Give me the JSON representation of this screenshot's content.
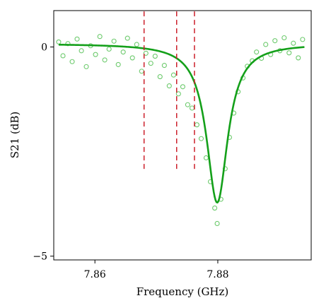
{
  "chart_data": {
    "type": "scatter",
    "xlabel": "Frequency (GHz)",
    "ylabel": "S21 (dB)",
    "xlim": [
      7.8533,
      7.8952
    ],
    "ylim": [
      -5.0,
      0.0
    ],
    "x_ticks": [
      {
        "value": 7.86,
        "label": "7.86"
      },
      {
        "value": 7.88,
        "label": "7.88"
      }
    ],
    "y_ticks": [
      {
        "value": 0,
        "label": "0"
      },
      {
        "value": -5,
        "label": "−5"
      }
    ],
    "grid": false,
    "legend": "none",
    "series": [
      {
        "kind": "scatter",
        "marker": "open-circle",
        "color": "#3cb83c",
        "points": [
          [
            7.8541,
            0.12
          ],
          [
            7.8548,
            -0.21
          ],
          [
            7.8556,
            0.08
          ],
          [
            7.8563,
            -0.35
          ],
          [
            7.8571,
            0.19
          ],
          [
            7.8578,
            -0.09
          ],
          [
            7.8586,
            -0.47
          ],
          [
            7.8593,
            0.03
          ],
          [
            7.8601,
            -0.18
          ],
          [
            7.8608,
            0.25
          ],
          [
            7.8616,
            -0.31
          ],
          [
            7.8623,
            -0.05
          ],
          [
            7.8631,
            0.14
          ],
          [
            7.8638,
            -0.42
          ],
          [
            7.8646,
            -0.12
          ],
          [
            7.8653,
            0.21
          ],
          [
            7.8661,
            -0.26
          ],
          [
            7.8668,
            0.06
          ],
          [
            7.8676,
            -0.58
          ],
          [
            7.8683,
            -0.15
          ],
          [
            7.8691,
            -0.39
          ],
          [
            7.8698,
            -0.22
          ],
          [
            7.8706,
            -0.71
          ],
          [
            7.8713,
            -0.44
          ],
          [
            7.8721,
            -0.93
          ],
          [
            7.8728,
            -0.67
          ],
          [
            7.8736,
            -1.12
          ],
          [
            7.8743,
            -0.95
          ],
          [
            7.8751,
            -1.38
          ],
          [
            7.8758,
            -1.46
          ],
          [
            7.8766,
            -1.86
          ],
          [
            7.8773,
            -2.19
          ],
          [
            7.8781,
            -2.65
          ],
          [
            7.8788,
            -3.22
          ],
          [
            7.8795,
            -3.85
          ],
          [
            7.8799,
            -4.22
          ],
          [
            7.8805,
            -3.64
          ],
          [
            7.8812,
            -2.91
          ],
          [
            7.8819,
            -2.16
          ],
          [
            7.8826,
            -1.58
          ],
          [
            7.8833,
            -1.07
          ],
          [
            7.8841,
            -0.74
          ],
          [
            7.8848,
            -0.46
          ],
          [
            7.8856,
            -0.33
          ],
          [
            7.8863,
            -0.12
          ],
          [
            7.8871,
            -0.27
          ],
          [
            7.8878,
            0.06
          ],
          [
            7.8886,
            -0.18
          ],
          [
            7.8893,
            0.15
          ],
          [
            7.8901,
            -0.09
          ],
          [
            7.8908,
            0.22
          ],
          [
            7.8916,
            -0.14
          ],
          [
            7.8923,
            0.09
          ],
          [
            7.8931,
            -0.26
          ],
          [
            7.8938,
            0.18
          ]
        ]
      },
      {
        "kind": "line",
        "label_printed": false,
        "color": "#14a01a",
        "model": "lorentzian_dip",
        "f0": 7.8799,
        "depth_db": 3.8,
        "half_width_ghz": 0.0021,
        "baseline_db": 0.08,
        "x_range": [
          7.8541,
          7.8941
        ]
      },
      {
        "kind": "vlines",
        "color": "#cc1f2b",
        "style": "dashed",
        "x": [
          7.868,
          7.8733,
          7.8762
        ],
        "y_range": [
          -2.95,
          0.85
        ]
      }
    ]
  }
}
